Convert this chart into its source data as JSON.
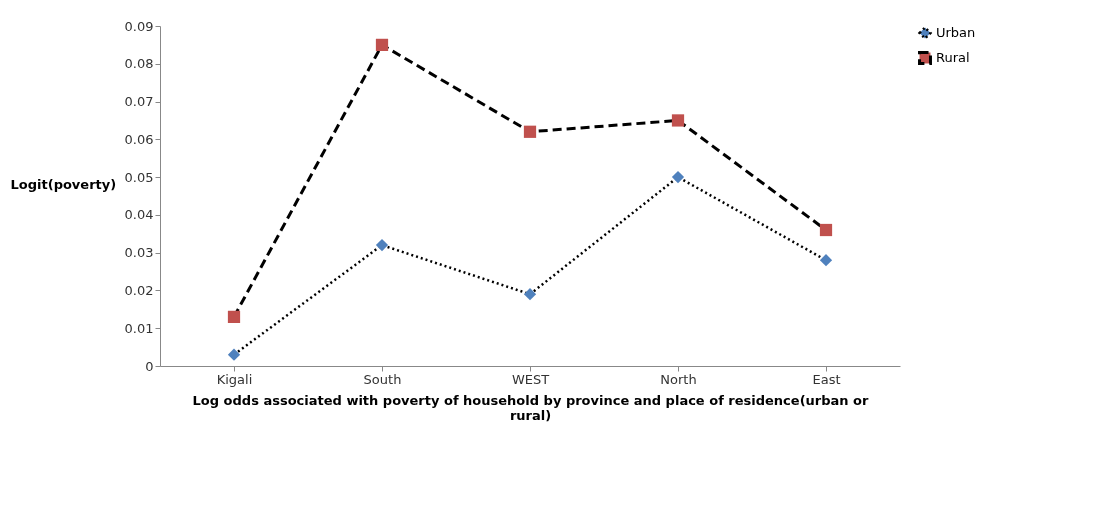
{
  "chart_data": {
    "type": "line",
    "xlabel": "Log odds associated with poverty of household by province and place of residence(urban or rural)",
    "ylabel": "Logit(poverty)",
    "categories": [
      "Kigali",
      "South",
      "WEST",
      "North",
      "East"
    ],
    "ylim": [
      0,
      0.09
    ],
    "yticks": [
      0,
      0.01,
      0.02,
      0.03,
      0.04,
      0.05,
      0.06,
      0.07,
      0.08,
      0.09
    ],
    "grid": false,
    "legend": "right",
    "series": [
      {
        "name": "Urban",
        "color": "#4f81bd",
        "marker": "diamond",
        "line_style": "dotted",
        "values": [
          0.003,
          0.032,
          0.019,
          0.05,
          0.028
        ]
      },
      {
        "name": "Rural",
        "color": "#c0504d",
        "marker": "square",
        "line_style": "dashed",
        "values": [
          0.013,
          0.085,
          0.062,
          0.065,
          0.036
        ]
      }
    ]
  }
}
